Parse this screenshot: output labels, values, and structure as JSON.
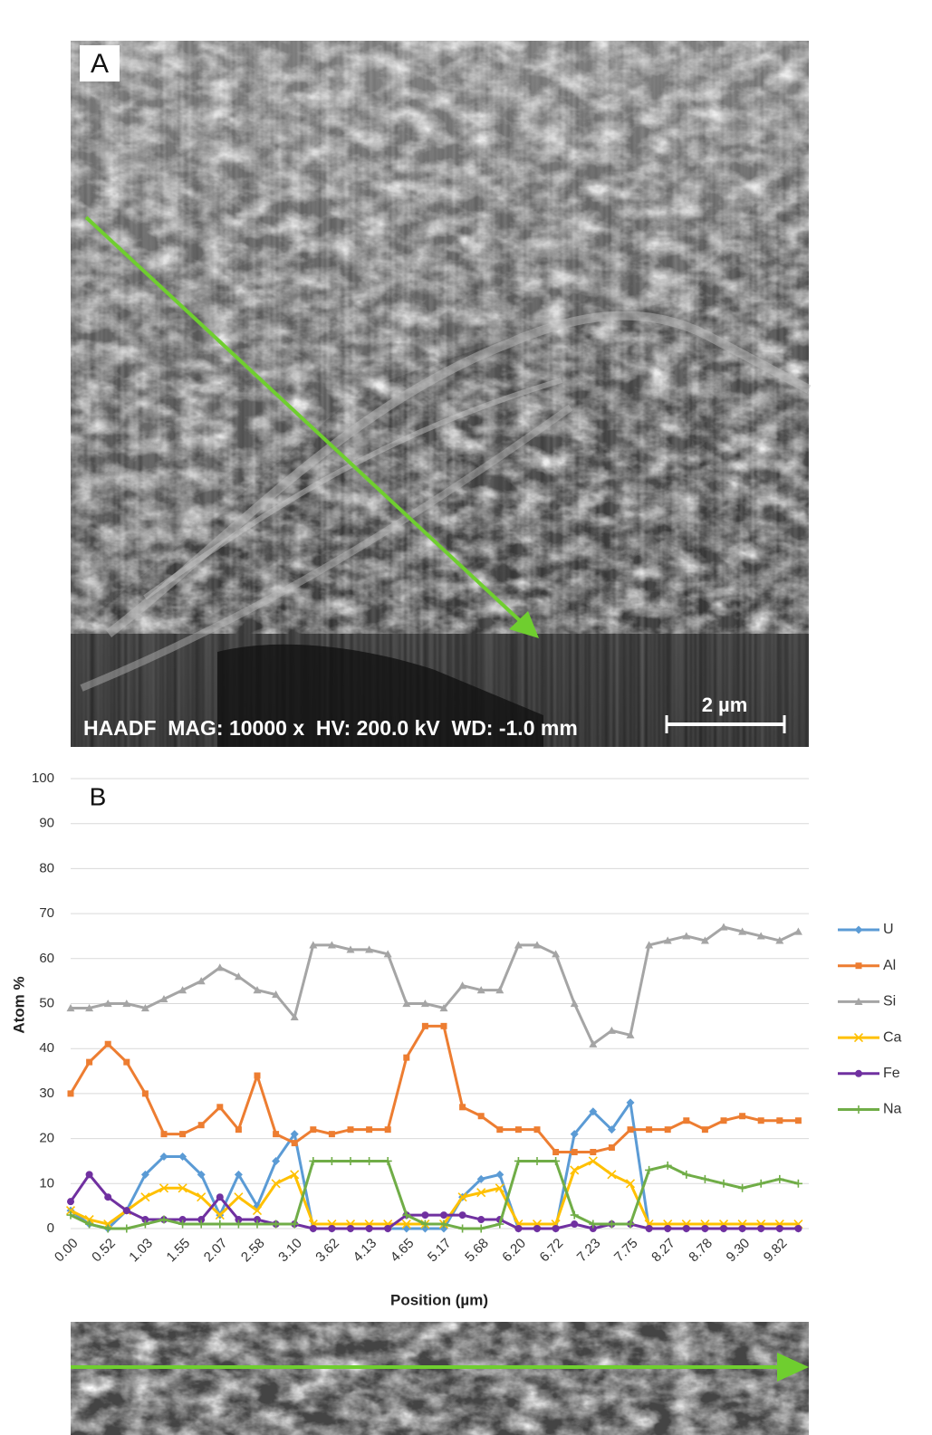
{
  "image_a": {
    "panel_label": "A",
    "info": "HAADF  MAG: 10000 x  HV: 200.0 kV  WD: -1.0 mm",
    "scale_bar": "2 µm"
  },
  "chart_data": {
    "type": "line",
    "panel_label": "B",
    "xlabel": "Position (µm)",
    "ylabel": "Atom %",
    "ylim": [
      0,
      100
    ],
    "yticks": [
      0,
      10,
      20,
      30,
      40,
      50,
      60,
      70,
      80,
      90,
      100
    ],
    "grid": true,
    "legend": "right",
    "categories": [
      "0.00",
      null,
      "0.52",
      null,
      "1.03",
      null,
      "1.55",
      null,
      "2.07",
      null,
      "2.58",
      null,
      "3.10",
      null,
      "3.62",
      null,
      "4.13",
      null,
      "4.65",
      null,
      "5.17",
      null,
      "5.68",
      null,
      "6.20",
      null,
      "6.72",
      null,
      "7.23",
      null,
      "7.75",
      null,
      "8.27",
      null,
      "8.78",
      null,
      "9.30",
      null,
      "9.82",
      null
    ],
    "series": [
      {
        "name": "U",
        "color": "#5b9bd5",
        "marker": "diamond",
        "values": [
          4,
          1,
          0,
          4,
          12,
          16,
          16,
          12,
          3,
          12,
          5,
          15,
          21,
          0,
          0,
          0,
          0,
          0,
          0,
          0,
          0,
          7,
          11,
          12,
          0,
          0,
          0,
          21,
          26,
          22,
          28,
          0,
          0,
          0,
          0,
          0,
          0,
          0,
          0,
          0
        ]
      },
      {
        "name": "Al",
        "color": "#ed7d31",
        "marker": "square",
        "values": [
          30,
          37,
          41,
          37,
          30,
          21,
          21,
          23,
          27,
          22,
          34,
          21,
          19,
          22,
          21,
          22,
          22,
          22,
          38,
          45,
          45,
          27,
          25,
          22,
          22,
          22,
          17,
          17,
          17,
          18,
          22,
          22,
          22,
          24,
          22,
          24,
          25,
          24,
          24,
          24
        ]
      },
      {
        "name": "Si",
        "color": "#a5a5a5",
        "marker": "triangle",
        "values": [
          49,
          49,
          50,
          50,
          49,
          51,
          53,
          55,
          58,
          56,
          53,
          52,
          47,
          63,
          63,
          62,
          62,
          61,
          50,
          50,
          49,
          54,
          53,
          53,
          63,
          63,
          61,
          50,
          41,
          44,
          43,
          63,
          64,
          65,
          64,
          67,
          66,
          65,
          64,
          66
        ]
      },
      {
        "name": "Ca",
        "color": "#ffc000",
        "marker": "x",
        "values": [
          4,
          2,
          1,
          4,
          7,
          9,
          9,
          7,
          3,
          7,
          4,
          10,
          12,
          1,
          1,
          1,
          1,
          1,
          1,
          1,
          1,
          7,
          8,
          9,
          1,
          1,
          1,
          13,
          15,
          12,
          10,
          1,
          1,
          1,
          1,
          1,
          1,
          1,
          1,
          1
        ]
      },
      {
        "name": "Fe",
        "color": "#7030a0",
        "marker": "circle",
        "values": [
          6,
          12,
          7,
          4,
          2,
          2,
          2,
          2,
          7,
          2,
          2,
          1,
          1,
          0,
          0,
          0,
          0,
          0,
          3,
          3,
          3,
          3,
          2,
          2,
          0,
          0,
          0,
          1,
          0,
          1,
          1,
          0,
          0,
          0,
          0,
          0,
          0,
          0,
          0,
          0
        ]
      },
      {
        "name": "Na",
        "color": "#70ad47",
        "marker": "plus",
        "values": [
          3,
          1,
          0,
          0,
          1,
          2,
          1,
          1,
          1,
          1,
          1,
          1,
          1,
          15,
          15,
          15,
          15,
          15,
          3,
          1,
          1,
          0,
          0,
          1,
          15,
          15,
          15,
          3,
          1,
          1,
          1,
          13,
          14,
          12,
          11,
          10,
          9,
          10,
          11,
          10
        ]
      }
    ]
  }
}
